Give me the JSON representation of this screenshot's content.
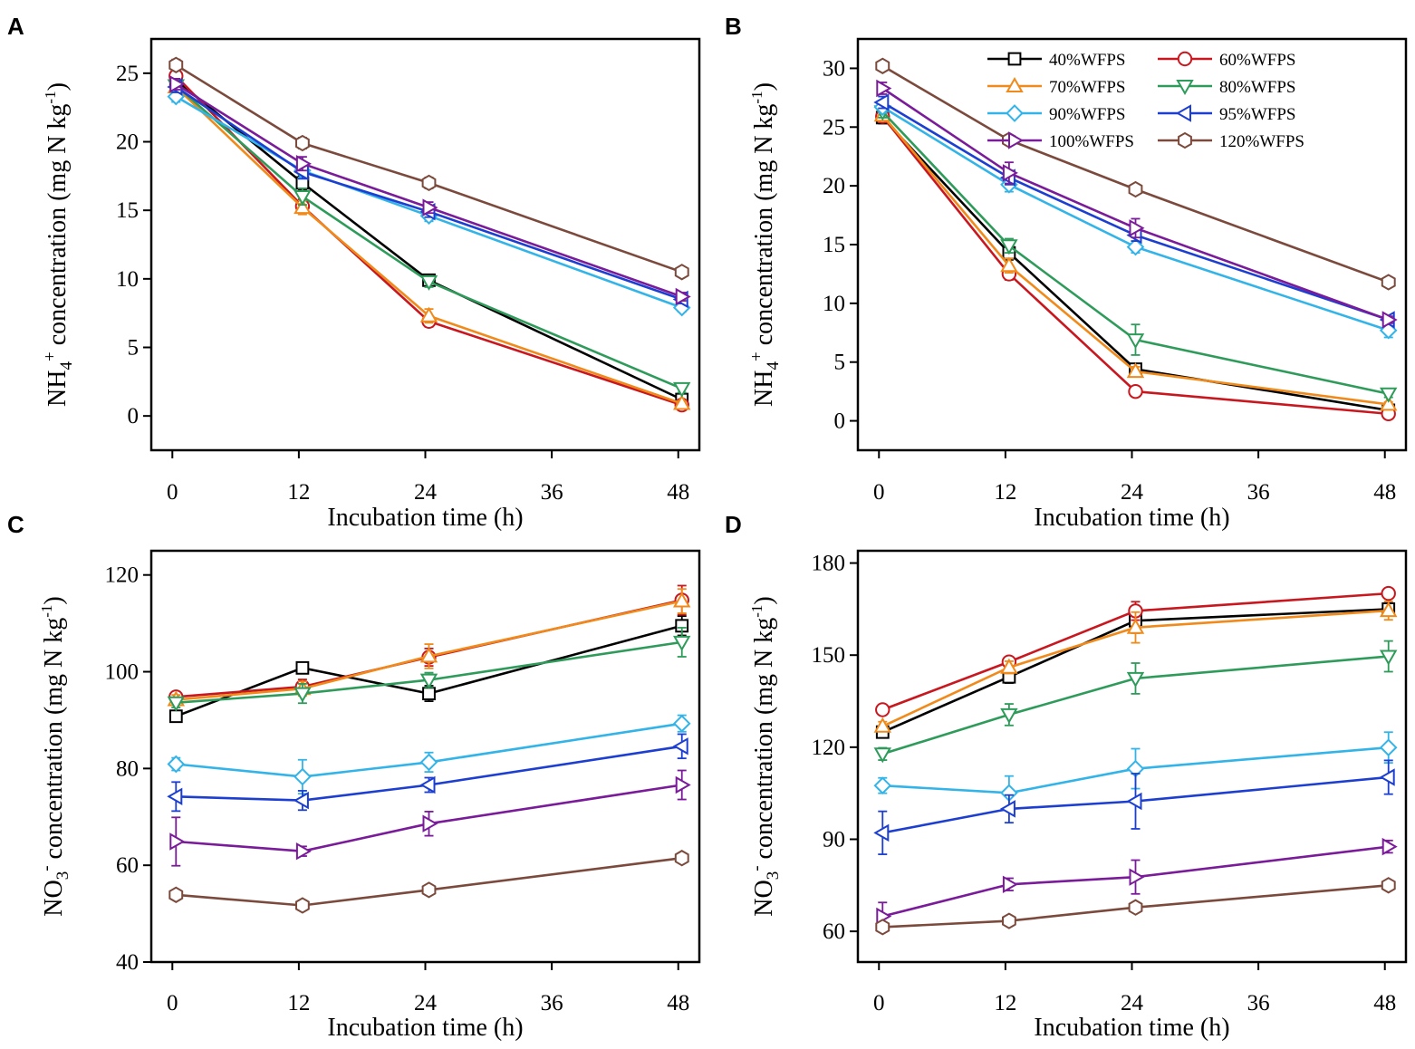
{
  "figure": {
    "series_styles": [
      {
        "name": "40%WFPS",
        "color": "#000000",
        "marker": "square"
      },
      {
        "name": "60%WFPS",
        "color": "#c8171e",
        "marker": "circle"
      },
      {
        "name": "70%WFPS",
        "color": "#f08a1a",
        "marker": "triangle-up"
      },
      {
        "name": "80%WFPS",
        "color": "#2e9b5a",
        "marker": "triangle-down"
      },
      {
        "name": "90%WFPS",
        "color": "#33b4e8",
        "marker": "diamond"
      },
      {
        "name": "95%WFPS",
        "color": "#1c3fd1",
        "marker": "triangle-left"
      },
      {
        "name": "100%WFPS",
        "color": "#7a1b9a",
        "marker": "triangle-right"
      },
      {
        "name": "120%WFPS",
        "color": "#7b4a3c",
        "marker": "hexagon"
      }
    ]
  },
  "chart_data": [
    {
      "panel": "A",
      "type": "line",
      "xlabel": "Incubation time (h)",
      "ylabel": "NH4+ concentration (mg N kg-1)",
      "ylabel_parts": {
        "ion": "NH",
        "sub": "4",
        "sup": "+",
        "rest": " concentration (mg N kg",
        "unit_sup": "-1",
        "close": ")"
      },
      "x": [
        0,
        12,
        24,
        48
      ],
      "xticks": [
        0,
        12,
        24,
        36,
        48
      ],
      "xlim": [
        -2,
        50
      ],
      "yticks": [
        0,
        5,
        10,
        15,
        20,
        25
      ],
      "ylim": [
        -2.5,
        27.5
      ],
      "legend": false,
      "series": [
        {
          "name": "40%WFPS",
          "values": [
            24.5,
            17.0,
            9.9,
            1.2
          ],
          "err": [
            0.4,
            0.5,
            0.4,
            0.3
          ]
        },
        {
          "name": "60%WFPS",
          "values": [
            24.8,
            15.3,
            6.9,
            0.8
          ],
          "err": [
            0.4,
            0.5,
            0.4,
            0.2
          ]
        },
        {
          "name": "70%WFPS",
          "values": [
            24.0,
            15.2,
            7.3,
            0.9
          ],
          "err": [
            0.4,
            0.5,
            0.5,
            0.2
          ]
        },
        {
          "name": "80%WFPS",
          "values": [
            24.1,
            16.0,
            9.8,
            2.0
          ],
          "err": [
            0.4,
            0.6,
            0.4,
            0.3
          ]
        },
        {
          "name": "90%WFPS",
          "values": [
            23.3,
            17.9,
            14.6,
            7.9
          ],
          "err": [
            0.4,
            0.5,
            0.4,
            0.3
          ]
        },
        {
          "name": "95%WFPS",
          "values": [
            24.0,
            17.8,
            14.9,
            8.5
          ],
          "err": [
            0.4,
            0.5,
            0.4,
            0.3
          ]
        },
        {
          "name": "100%WFPS",
          "values": [
            24.2,
            18.4,
            15.2,
            8.7
          ],
          "err": [
            0.4,
            0.5,
            0.4,
            0.3
          ]
        },
        {
          "name": "120%WFPS",
          "values": [
            25.6,
            19.9,
            17.0,
            10.5
          ],
          "err": [
            0.4,
            0.4,
            0.4,
            0.3
          ]
        }
      ]
    },
    {
      "panel": "B",
      "type": "line",
      "xlabel": "Incubation time (h)",
      "ylabel": "NH4+ concentration (mg N kg-1)",
      "ylabel_parts": {
        "ion": "NH",
        "sub": "4",
        "sup": "+",
        "rest": " concentration (mg N kg",
        "unit_sup": "-1",
        "close": ")"
      },
      "x": [
        0,
        12,
        24,
        48
      ],
      "xticks": [
        0,
        12,
        24,
        36,
        48
      ],
      "xlim": [
        -2,
        50
      ],
      "yticks": [
        0,
        5,
        10,
        15,
        20,
        25,
        30
      ],
      "ylim": [
        -2.5,
        32.5
      ],
      "legend": true,
      "series": [
        {
          "name": "40%WFPS",
          "values": [
            25.8,
            14.3,
            4.4,
            0.9
          ],
          "err": [
            0.5,
            0.6,
            0.4,
            0.2
          ]
        },
        {
          "name": "60%WFPS",
          "values": [
            25.9,
            12.5,
            2.5,
            0.6
          ],
          "err": [
            0.5,
            0.5,
            0.3,
            0.2
          ]
        },
        {
          "name": "70%WFPS",
          "values": [
            26.0,
            13.2,
            4.2,
            1.4
          ],
          "err": [
            0.5,
            0.6,
            0.4,
            0.2
          ]
        },
        {
          "name": "80%WFPS",
          "values": [
            26.3,
            14.9,
            6.9,
            2.3
          ],
          "err": [
            0.5,
            0.6,
            1.3,
            0.3
          ]
        },
        {
          "name": "90%WFPS",
          "values": [
            26.7,
            20.1,
            14.8,
            7.7
          ],
          "err": [
            0.5,
            0.6,
            0.5,
            0.6
          ]
        },
        {
          "name": "95%WFPS",
          "values": [
            27.1,
            20.7,
            15.8,
            8.6
          ],
          "err": [
            0.5,
            0.6,
            0.5,
            0.3
          ]
        },
        {
          "name": "100%WFPS",
          "values": [
            28.3,
            21.1,
            16.4,
            8.6
          ],
          "err": [
            0.5,
            0.9,
            0.8,
            0.3
          ]
        },
        {
          "name": "120%WFPS",
          "values": [
            30.2,
            23.9,
            19.7,
            11.8
          ],
          "err": [
            0.4,
            0.4,
            0.4,
            0.3
          ]
        }
      ]
    },
    {
      "panel": "C",
      "type": "line",
      "xlabel": "Incubation time (h)",
      "ylabel": "NO3- concentration (mg N kg-1)",
      "ylabel_parts": {
        "ion": "NO",
        "sub": "3",
        "sup": "-",
        "rest": " concentration (mg N kg",
        "unit_sup": "-1",
        "close": ")"
      },
      "x": [
        0,
        12,
        24,
        48
      ],
      "xticks": [
        0,
        12,
        24,
        36,
        48
      ],
      "xlim": [
        -2,
        50
      ],
      "yticks": [
        40,
        60,
        80,
        100,
        120
      ],
      "ylim": [
        40,
        125
      ],
      "legend": false,
      "series": [
        {
          "name": "40%WFPS",
          "values": [
            90.8,
            100.8,
            95.5,
            109.5
          ],
          "err": [
            1.0,
            1.0,
            1.6,
            2.0
          ]
        },
        {
          "name": "60%WFPS",
          "values": [
            94.8,
            96.9,
            103.0,
            114.8
          ],
          "err": [
            1.0,
            1.5,
            1.8,
            3.0
          ]
        },
        {
          "name": "70%WFPS",
          "values": [
            94.2,
            96.5,
            103.2,
            114.6
          ],
          "err": [
            1.0,
            1.5,
            2.5,
            2.5
          ]
        },
        {
          "name": "80%WFPS",
          "values": [
            93.6,
            95.5,
            98.3,
            106.1
          ],
          "err": [
            1.0,
            2.0,
            1.5,
            3.0
          ]
        },
        {
          "name": "90%WFPS",
          "values": [
            80.9,
            78.3,
            81.3,
            89.3
          ],
          "err": [
            1.3,
            3.5,
            2.0,
            1.7
          ]
        },
        {
          "name": "95%WFPS",
          "values": [
            74.2,
            73.4,
            76.6,
            84.6
          ],
          "err": [
            3.0,
            2.0,
            1.5,
            2.5
          ]
        },
        {
          "name": "100%WFPS",
          "values": [
            64.9,
            62.9,
            68.6,
            76.6
          ],
          "err": [
            5.0,
            1.0,
            2.5,
            3.0
          ]
        },
        {
          "name": "120%WFPS",
          "values": [
            53.9,
            51.7,
            54.9,
            61.5
          ],
          "err": [
            1.0,
            1.0,
            0.8,
            0.8
          ]
        }
      ]
    },
    {
      "panel": "D",
      "type": "line",
      "xlabel": "Incubation time (h)",
      "ylabel": "NO3- concentration (mg N kg-1)",
      "ylabel_parts": {
        "ion": "NO",
        "sub": "3",
        "sup": "-",
        "rest": " concentration (mg N kg",
        "unit_sup": "-1",
        "close": ")"
      },
      "x": [
        0,
        12,
        24,
        48
      ],
      "xticks": [
        0,
        12,
        24,
        36,
        48
      ],
      "xlim": [
        -2,
        50
      ],
      "yticks": [
        60,
        90,
        120,
        150,
        180
      ],
      "ylim": [
        50,
        184
      ],
      "legend": false,
      "series": [
        {
          "name": "40%WFPS",
          "values": [
            124.9,
            142.9,
            161.2,
            165.0
          ],
          "err": [
            1.5,
            2.0,
            4.0,
            2.0
          ]
        },
        {
          "name": "60%WFPS",
          "values": [
            132.2,
            147.8,
            164.4,
            170.1
          ],
          "err": [
            1.5,
            1.5,
            3.0,
            1.5
          ]
        },
        {
          "name": "70%WFPS",
          "values": [
            126.8,
            146.0,
            159.0,
            164.5
          ],
          "err": [
            1.5,
            2.0,
            5.0,
            3.0
          ]
        },
        {
          "name": "80%WFPS",
          "values": [
            117.8,
            130.6,
            142.4,
            149.6
          ],
          "err": [
            2.0,
            3.5,
            5.0,
            5.0
          ]
        },
        {
          "name": "90%WFPS",
          "values": [
            107.5,
            105.1,
            113.0,
            119.9
          ],
          "err": [
            2.5,
            5.5,
            6.5,
            5.0
          ]
        },
        {
          "name": "95%WFPS",
          "values": [
            92.1,
            99.9,
            102.4,
            110.2
          ],
          "err": [
            7.0,
            4.5,
            9.0,
            5.5
          ]
        },
        {
          "name": "100%WFPS",
          "values": [
            64.9,
            75.3,
            77.7,
            87.6
          ],
          "err": [
            4.5,
            2.0,
            5.5,
            2.0
          ]
        },
        {
          "name": "120%WFPS",
          "values": [
            61.4,
            63.4,
            67.8,
            75.0
          ],
          "err": [
            1.0,
            1.0,
            1.5,
            1.0
          ]
        }
      ]
    }
  ]
}
